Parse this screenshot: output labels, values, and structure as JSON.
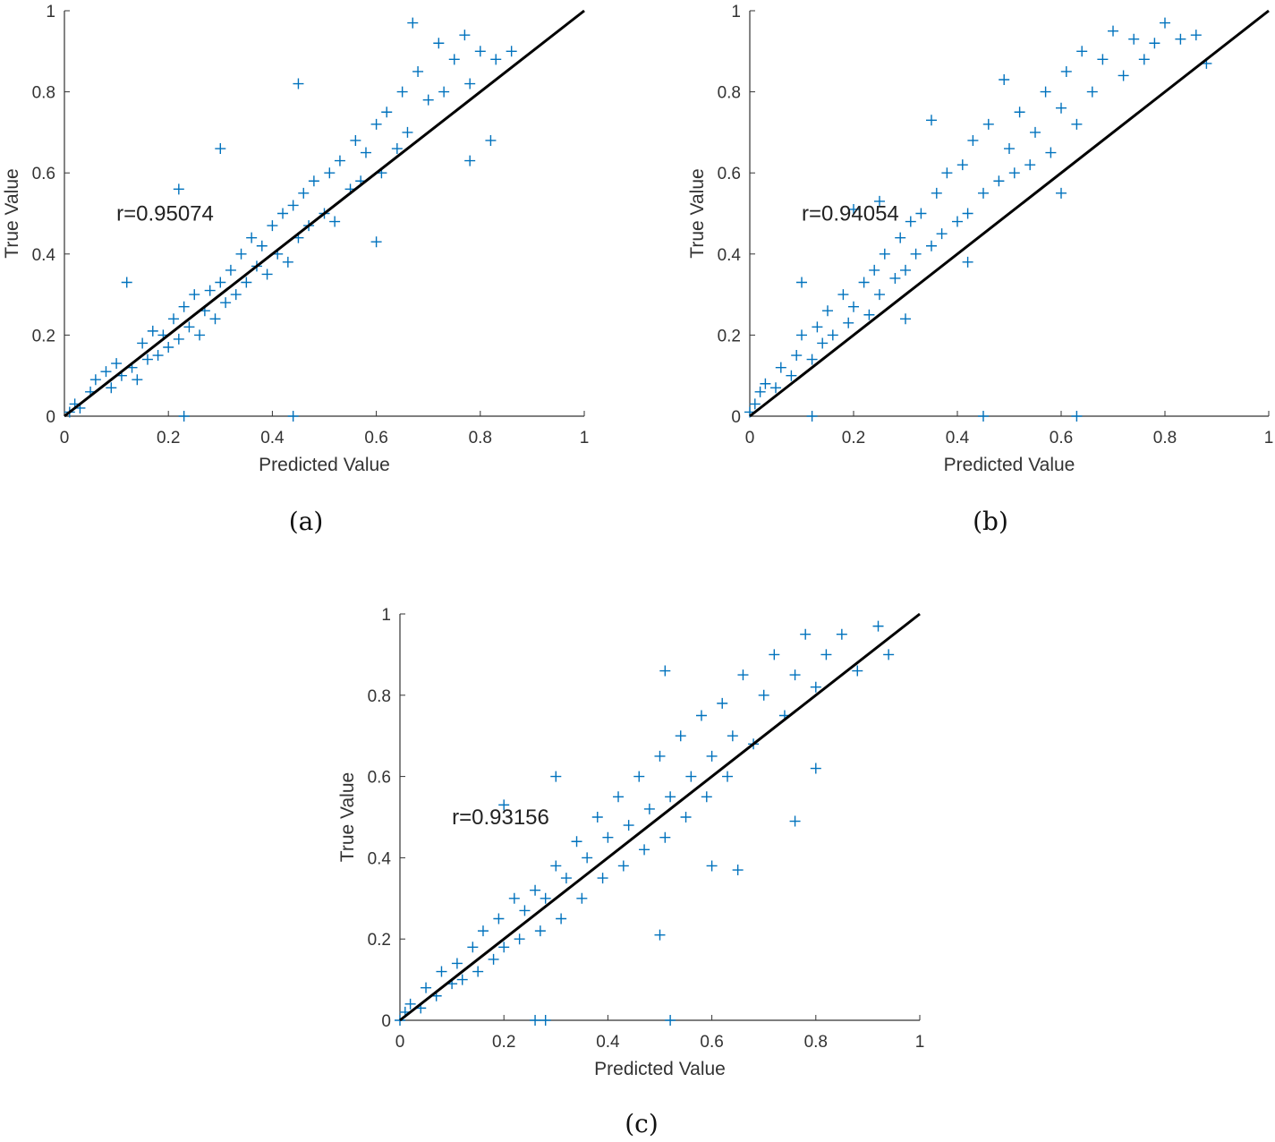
{
  "marker_color": "#0072BD",
  "line_color": "#000000",
  "chart_data": [
    {
      "type": "scatter",
      "caption": "(a)",
      "xlabel": "Predicted Value",
      "ylabel": "True Value",
      "xlim": [
        0,
        1
      ],
      "ylim": [
        0,
        1
      ],
      "xticks": [
        "0",
        "0.2",
        "0.4",
        "0.6",
        "0.8",
        "1"
      ],
      "yticks": [
        "0",
        "0.2",
        "0.4",
        "0.6",
        "0.8",
        "1"
      ],
      "annotation": {
        "text": "r=0.95074",
        "x": 0.1,
        "y": 0.5
      },
      "reference_line": [
        [
          0,
          0
        ],
        [
          1,
          1
        ]
      ],
      "points": [
        [
          0.01,
          0.01
        ],
        [
          0.02,
          0.03
        ],
        [
          0.03,
          0.02
        ],
        [
          0.05,
          0.06
        ],
        [
          0.06,
          0.09
        ],
        [
          0.08,
          0.11
        ],
        [
          0.09,
          0.07
        ],
        [
          0.1,
          0.13
        ],
        [
          0.11,
          0.1
        ],
        [
          0.13,
          0.12
        ],
        [
          0.14,
          0.09
        ],
        [
          0.15,
          0.18
        ],
        [
          0.16,
          0.14
        ],
        [
          0.17,
          0.21
        ],
        [
          0.18,
          0.15
        ],
        [
          0.19,
          0.2
        ],
        [
          0.2,
          0.17
        ],
        [
          0.21,
          0.24
        ],
        [
          0.22,
          0.19
        ],
        [
          0.23,
          0.27
        ],
        [
          0.24,
          0.22
        ],
        [
          0.25,
          0.3
        ],
        [
          0.26,
          0.2
        ],
        [
          0.27,
          0.26
        ],
        [
          0.28,
          0.31
        ],
        [
          0.29,
          0.24
        ],
        [
          0.3,
          0.33
        ],
        [
          0.31,
          0.28
        ],
        [
          0.32,
          0.36
        ],
        [
          0.33,
          0.3
        ],
        [
          0.34,
          0.4
        ],
        [
          0.35,
          0.33
        ],
        [
          0.36,
          0.44
        ],
        [
          0.37,
          0.37
        ],
        [
          0.38,
          0.42
        ],
        [
          0.39,
          0.35
        ],
        [
          0.4,
          0.47
        ],
        [
          0.41,
          0.4
        ],
        [
          0.42,
          0.5
        ],
        [
          0.43,
          0.38
        ],
        [
          0.44,
          0.52
        ],
        [
          0.45,
          0.44
        ],
        [
          0.46,
          0.55
        ],
        [
          0.47,
          0.47
        ],
        [
          0.48,
          0.58
        ],
        [
          0.5,
          0.5
        ],
        [
          0.51,
          0.6
        ],
        [
          0.52,
          0.48
        ],
        [
          0.53,
          0.63
        ],
        [
          0.55,
          0.56
        ],
        [
          0.56,
          0.68
        ],
        [
          0.57,
          0.58
        ],
        [
          0.58,
          0.65
        ],
        [
          0.6,
          0.72
        ],
        [
          0.61,
          0.6
        ],
        [
          0.62,
          0.75
        ],
        [
          0.64,
          0.66
        ],
        [
          0.65,
          0.8
        ],
        [
          0.66,
          0.7
        ],
        [
          0.68,
          0.85
        ],
        [
          0.7,
          0.78
        ],
        [
          0.72,
          0.92
        ],
        [
          0.73,
          0.8
        ],
        [
          0.75,
          0.88
        ],
        [
          0.77,
          0.94
        ],
        [
          0.78,
          0.82
        ],
        [
          0.8,
          0.9
        ],
        [
          0.83,
          0.88
        ],
        [
          0.86,
          0.9
        ],
        [
          0.3,
          0.66
        ],
        [
          0.22,
          0.56
        ],
        [
          0.23,
          0.0
        ],
        [
          0.44,
          0.0
        ],
        [
          0.82,
          0.68
        ],
        [
          0.78,
          0.63
        ],
        [
          0.12,
          0.33
        ],
        [
          0.6,
          0.43
        ],
        [
          0.45,
          0.82
        ],
        [
          0.67,
          0.97
        ]
      ]
    },
    {
      "type": "scatter",
      "caption": "(b)",
      "xlabel": "Predicted Value",
      "ylabel": "True Value",
      "xlim": [
        0,
        1
      ],
      "ylim": [
        0,
        1
      ],
      "xticks": [
        "0",
        "0.2",
        "0.4",
        "0.6",
        "0.8",
        "1"
      ],
      "yticks": [
        "0",
        "0.2",
        "0.4",
        "0.6",
        "0.8",
        "1"
      ],
      "annotation": {
        "text": "r=0.94054",
        "x": 0.1,
        "y": 0.5
      },
      "reference_line": [
        [
          0,
          0
        ],
        [
          1,
          1
        ]
      ],
      "points": [
        [
          0.0,
          0.01
        ],
        [
          0.01,
          0.03
        ],
        [
          0.02,
          0.06
        ],
        [
          0.03,
          0.08
        ],
        [
          0.05,
          0.07
        ],
        [
          0.06,
          0.12
        ],
        [
          0.08,
          0.1
        ],
        [
          0.09,
          0.15
        ],
        [
          0.1,
          0.2
        ],
        [
          0.12,
          0.14
        ],
        [
          0.13,
          0.22
        ],
        [
          0.14,
          0.18
        ],
        [
          0.15,
          0.26
        ],
        [
          0.16,
          0.2
        ],
        [
          0.18,
          0.3
        ],
        [
          0.19,
          0.23
        ],
        [
          0.2,
          0.27
        ],
        [
          0.22,
          0.33
        ],
        [
          0.23,
          0.25
        ],
        [
          0.24,
          0.36
        ],
        [
          0.25,
          0.3
        ],
        [
          0.26,
          0.4
        ],
        [
          0.28,
          0.34
        ],
        [
          0.29,
          0.44
        ],
        [
          0.3,
          0.36
        ],
        [
          0.31,
          0.48
        ],
        [
          0.32,
          0.4
        ],
        [
          0.33,
          0.5
        ],
        [
          0.35,
          0.42
        ],
        [
          0.36,
          0.55
        ],
        [
          0.37,
          0.45
        ],
        [
          0.38,
          0.6
        ],
        [
          0.4,
          0.48
        ],
        [
          0.41,
          0.62
        ],
        [
          0.42,
          0.5
        ],
        [
          0.43,
          0.68
        ],
        [
          0.45,
          0.55
        ],
        [
          0.46,
          0.72
        ],
        [
          0.48,
          0.58
        ],
        [
          0.5,
          0.66
        ],
        [
          0.51,
          0.6
        ],
        [
          0.52,
          0.75
        ],
        [
          0.54,
          0.62
        ],
        [
          0.55,
          0.7
        ],
        [
          0.57,
          0.8
        ],
        [
          0.58,
          0.65
        ],
        [
          0.6,
          0.76
        ],
        [
          0.61,
          0.85
        ],
        [
          0.63,
          0.72
        ],
        [
          0.64,
          0.9
        ],
        [
          0.66,
          0.8
        ],
        [
          0.68,
          0.88
        ],
        [
          0.7,
          0.95
        ],
        [
          0.72,
          0.84
        ],
        [
          0.74,
          0.93
        ],
        [
          0.76,
          0.88
        ],
        [
          0.78,
          0.92
        ],
        [
          0.8,
          0.97
        ],
        [
          0.83,
          0.93
        ],
        [
          0.86,
          0.94
        ],
        [
          0.88,
          0.87
        ],
        [
          0.12,
          0.0
        ],
        [
          0.45,
          0.0
        ],
        [
          0.63,
          0.0
        ],
        [
          0.1,
          0.33
        ],
        [
          0.25,
          0.53
        ],
        [
          0.2,
          0.51
        ],
        [
          0.35,
          0.73
        ],
        [
          0.49,
          0.83
        ],
        [
          0.42,
          0.38
        ],
        [
          0.6,
          0.55
        ],
        [
          0.3,
          0.24
        ]
      ]
    },
    {
      "type": "scatter",
      "caption": "(c)",
      "xlabel": "Predicted Value",
      "ylabel": "True Value",
      "xlim": [
        0,
        1
      ],
      "ylim": [
        0,
        1
      ],
      "xticks": [
        "0",
        "0.2",
        "0.4",
        "0.6",
        "0.8",
        "1"
      ],
      "yticks": [
        "0",
        "0.2",
        "0.4",
        "0.6",
        "0.8",
        "1"
      ],
      "annotation": {
        "text": "r=0.93156",
        "x": 0.1,
        "y": 0.5
      },
      "reference_line": [
        [
          0,
          0
        ],
        [
          1,
          1
        ]
      ],
      "points": [
        [
          0.0,
          0.0
        ],
        [
          0.01,
          0.02
        ],
        [
          0.02,
          0.04
        ],
        [
          0.04,
          0.03
        ],
        [
          0.05,
          0.08
        ],
        [
          0.07,
          0.06
        ],
        [
          0.08,
          0.12
        ],
        [
          0.1,
          0.09
        ],
        [
          0.11,
          0.14
        ],
        [
          0.12,
          0.1
        ],
        [
          0.14,
          0.18
        ],
        [
          0.15,
          0.12
        ],
        [
          0.16,
          0.22
        ],
        [
          0.18,
          0.15
        ],
        [
          0.19,
          0.25
        ],
        [
          0.2,
          0.18
        ],
        [
          0.22,
          0.3
        ],
        [
          0.23,
          0.2
        ],
        [
          0.24,
          0.27
        ],
        [
          0.26,
          0.32
        ],
        [
          0.27,
          0.22
        ],
        [
          0.28,
          0.3
        ],
        [
          0.3,
          0.38
        ],
        [
          0.31,
          0.25
        ],
        [
          0.32,
          0.35
        ],
        [
          0.34,
          0.44
        ],
        [
          0.35,
          0.3
        ],
        [
          0.36,
          0.4
        ],
        [
          0.38,
          0.5
        ],
        [
          0.39,
          0.35
        ],
        [
          0.4,
          0.45
        ],
        [
          0.42,
          0.55
        ],
        [
          0.43,
          0.38
        ],
        [
          0.44,
          0.48
        ],
        [
          0.46,
          0.6
        ],
        [
          0.47,
          0.42
        ],
        [
          0.48,
          0.52
        ],
        [
          0.5,
          0.65
        ],
        [
          0.51,
          0.45
        ],
        [
          0.52,
          0.55
        ],
        [
          0.54,
          0.7
        ],
        [
          0.55,
          0.5
        ],
        [
          0.56,
          0.6
        ],
        [
          0.58,
          0.75
        ],
        [
          0.59,
          0.55
        ],
        [
          0.6,
          0.65
        ],
        [
          0.62,
          0.78
        ],
        [
          0.63,
          0.6
        ],
        [
          0.64,
          0.7
        ],
        [
          0.66,
          0.85
        ],
        [
          0.68,
          0.68
        ],
        [
          0.7,
          0.8
        ],
        [
          0.72,
          0.9
        ],
        [
          0.74,
          0.75
        ],
        [
          0.76,
          0.85
        ],
        [
          0.78,
          0.95
        ],
        [
          0.8,
          0.82
        ],
        [
          0.82,
          0.9
        ],
        [
          0.85,
          0.95
        ],
        [
          0.88,
          0.86
        ],
        [
          0.92,
          0.97
        ],
        [
          0.94,
          0.9
        ],
        [
          0.26,
          0.0
        ],
        [
          0.28,
          0.0
        ],
        [
          0.52,
          0.0
        ],
        [
          0.5,
          0.21
        ],
        [
          0.6,
          0.38
        ],
        [
          0.65,
          0.37
        ],
        [
          0.76,
          0.49
        ],
        [
          0.8,
          0.62
        ],
        [
          0.2,
          0.53
        ],
        [
          0.3,
          0.6
        ],
        [
          0.51,
          0.86
        ]
      ]
    }
  ]
}
